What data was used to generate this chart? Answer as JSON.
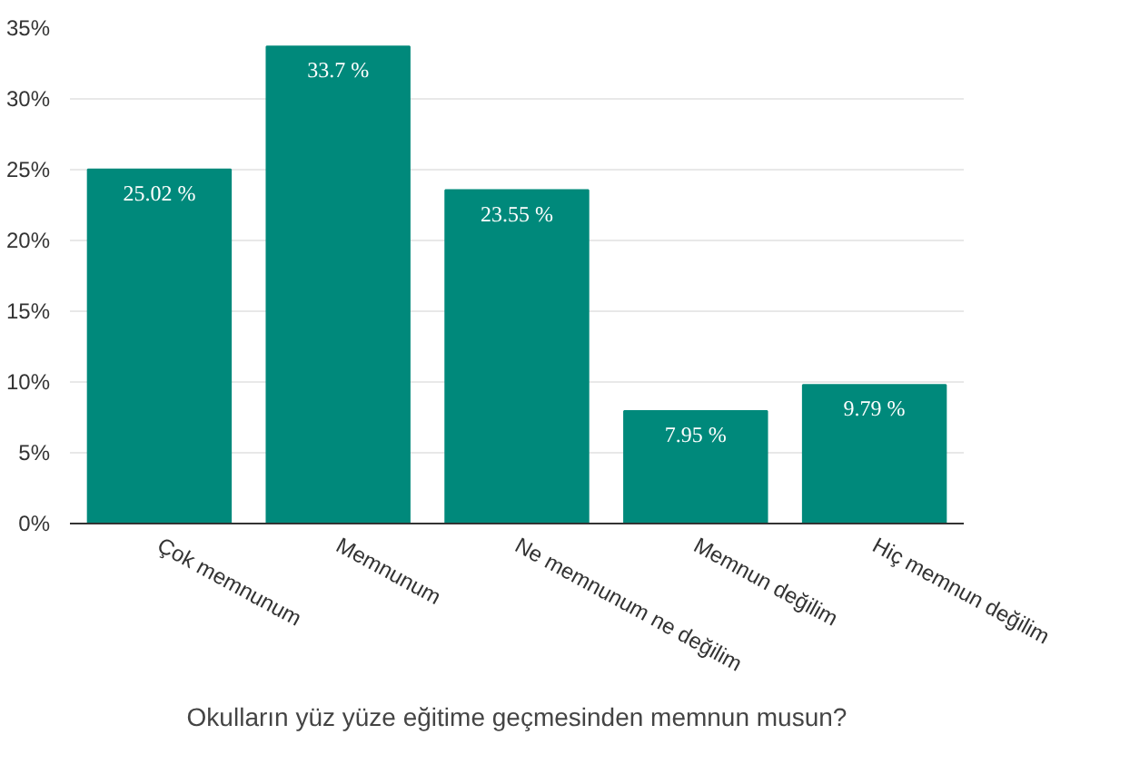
{
  "chart_data": {
    "type": "bar",
    "xlabel": "Okulların yüz yüze eğitime geçmesinden memnun musun?",
    "categories": [
      "Çok memnunum",
      "Memnunum",
      "Ne memnunum ne değilim",
      "Memnun değilim",
      "Hiç memnun değilim"
    ],
    "values": [
      25.02,
      33.7,
      23.55,
      7.95,
      9.79
    ],
    "value_labels": [
      "25.02 %",
      "33.7 %",
      "23.55 %",
      "7.95 %",
      "9.79 %"
    ],
    "color": "#00897b",
    "ylim": [
      0,
      35
    ],
    "yticks": [
      {
        "value": 0,
        "label": "0%"
      },
      {
        "value": 5,
        "label": "5%"
      },
      {
        "value": 10,
        "label": "10%"
      },
      {
        "value": 15,
        "label": "15%"
      },
      {
        "value": 20,
        "label": "20%"
      },
      {
        "value": 25,
        "label": "25%"
      },
      {
        "value": 30,
        "label": "30%"
      },
      {
        "value": 35,
        "label": "35%"
      }
    ],
    "grid": "y"
  }
}
